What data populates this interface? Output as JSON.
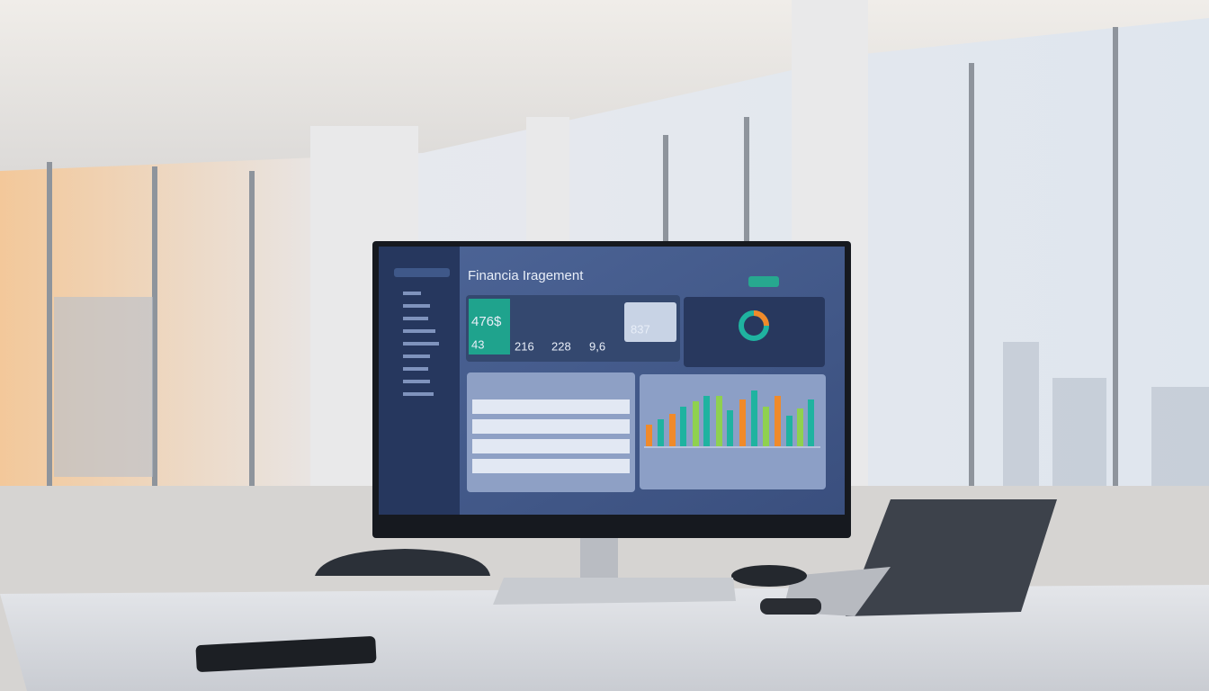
{
  "screen": {
    "title": "Financia Iragement",
    "kpis": [
      "476$",
      "43",
      "216",
      "228",
      "9,6",
      "837"
    ]
  }
}
